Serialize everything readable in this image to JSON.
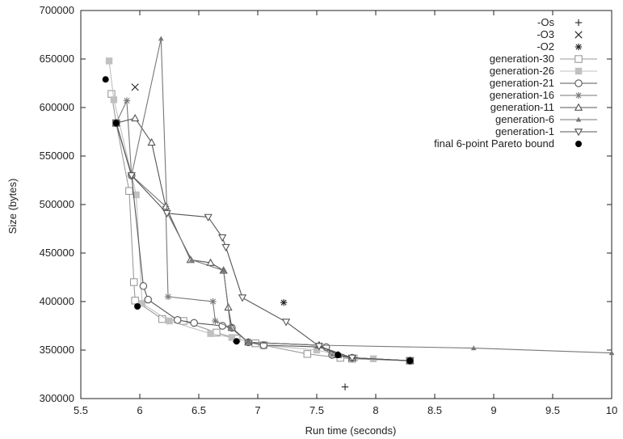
{
  "chart_data": {
    "type": "scatter",
    "xlabel": "Run time (seconds)",
    "ylabel": "Size (bytes)",
    "xlim": [
      5.5,
      10
    ],
    "ylim": [
      300000,
      700000
    ],
    "xticks": [
      "5.5",
      "6",
      "6.5",
      "7",
      "7.5",
      "8",
      "8.5",
      "9",
      "9.5",
      "10"
    ],
    "yticks": [
      "300000",
      "350000",
      "400000",
      "450000",
      "500000",
      "550000",
      "600000",
      "650000",
      "700000"
    ],
    "legend_position": "top-right",
    "series": [
      {
        "name": "-Os",
        "marker": "plus",
        "line": false,
        "color": "#222222",
        "points": [
          [
            7.74,
            312000
          ]
        ]
      },
      {
        "name": "-O3",
        "marker": "x",
        "line": false,
        "color": "#222222",
        "points": [
          [
            5.96,
            621000
          ]
        ]
      },
      {
        "name": "-O2",
        "marker": "star",
        "line": false,
        "color": "#222222",
        "points": [
          [
            7.22,
            399000
          ]
        ]
      },
      {
        "name": "generation-30",
        "marker": "square-open",
        "line": true,
        "color": "#9a9a9a",
        "points": [
          [
            5.76,
            614000
          ],
          [
            5.8,
            584000
          ],
          [
            5.91,
            514000
          ],
          [
            5.95,
            420000
          ],
          [
            5.96,
            401000
          ],
          [
            6.19,
            382000
          ],
          [
            6.37,
            380000
          ],
          [
            6.65,
            368000
          ],
          [
            6.82,
            362000
          ],
          [
            6.98,
            357000
          ],
          [
            7.05,
            355000
          ],
          [
            7.42,
            346000
          ],
          [
            7.7,
            342000
          ],
          [
            7.8,
            341000
          ],
          [
            8.29,
            339000
          ]
        ]
      },
      {
        "name": "generation-26",
        "marker": "square-filled",
        "line": true,
        "color": "#c0c0c0",
        "points": [
          [
            5.74,
            648000
          ],
          [
            5.78,
            608000
          ],
          [
            5.97,
            510000
          ],
          [
            6.02,
            398000
          ],
          [
            6.25,
            380000
          ],
          [
            6.6,
            367000
          ],
          [
            6.78,
            363000
          ],
          [
            7.05,
            355000
          ],
          [
            7.5,
            350000
          ],
          [
            7.82,
            342000
          ],
          [
            7.98,
            341000
          ],
          [
            8.29,
            339000
          ]
        ]
      },
      {
        "name": "generation-21",
        "marker": "circle-open",
        "line": true,
        "color": "#555555",
        "points": [
          [
            5.8,
            584000
          ],
          [
            5.93,
            530000
          ],
          [
            6.03,
            416000
          ],
          [
            6.07,
            402000
          ],
          [
            6.32,
            381000
          ],
          [
            6.46,
            378000
          ],
          [
            6.7,
            375000
          ],
          [
            6.78,
            373000
          ],
          [
            6.92,
            358000
          ],
          [
            7.05,
            355000
          ],
          [
            7.58,
            353000
          ],
          [
            7.63,
            345000
          ],
          [
            7.8,
            342000
          ],
          [
            8.29,
            339000
          ]
        ]
      },
      {
        "name": "generation-16",
        "marker": "star",
        "line": true,
        "color": "#777777",
        "points": [
          [
            5.8,
            584000
          ],
          [
            5.89,
            607000
          ],
          [
            5.93,
            530000
          ],
          [
            6.22,
            498000
          ],
          [
            6.24,
            405000
          ],
          [
            6.62,
            400000
          ],
          [
            6.64,
            380000
          ],
          [
            6.77,
            373000
          ],
          [
            6.92,
            358000
          ],
          [
            7.52,
            355000
          ],
          [
            7.63,
            345000
          ],
          [
            7.8,
            342000
          ],
          [
            8.29,
            339000
          ]
        ]
      },
      {
        "name": "generation-11",
        "marker": "triangle-open",
        "line": true,
        "color": "#555555",
        "points": [
          [
            5.8,
            584000
          ],
          [
            5.96,
            589000
          ],
          [
            6.1,
            564000
          ],
          [
            6.22,
            498000
          ],
          [
            6.43,
            443000
          ],
          [
            6.6,
            440000
          ],
          [
            6.71,
            432000
          ],
          [
            6.75,
            394000
          ],
          [
            6.78,
            373000
          ],
          [
            6.92,
            358000
          ],
          [
            7.52,
            355000
          ],
          [
            7.68,
            345000
          ],
          [
            7.8,
            342000
          ],
          [
            8.29,
            339000
          ]
        ]
      },
      {
        "name": "generation-6",
        "marker": "triangle-filled",
        "line": true,
        "color": "#777777",
        "points": [
          [
            5.8,
            584000
          ],
          [
            5.93,
            530000
          ],
          [
            6.18,
            671000
          ],
          [
            6.23,
            492000
          ],
          [
            6.44,
            443000
          ],
          [
            6.71,
            432000
          ],
          [
            6.77,
            373000
          ],
          [
            6.92,
            358000
          ],
          [
            7.52,
            355000
          ],
          [
            8.83,
            352000
          ],
          [
            10.0,
            347000
          ]
        ]
      },
      {
        "name": "generation-1",
        "marker": "triangle-down-open",
        "line": true,
        "color": "#555555",
        "points": [
          [
            5.8,
            584000
          ],
          [
            5.93,
            530000
          ],
          [
            6.23,
            491000
          ],
          [
            6.58,
            487000
          ],
          [
            6.7,
            466000
          ],
          [
            6.73,
            456000
          ],
          [
            6.87,
            404000
          ],
          [
            7.24,
            379000
          ],
          [
            7.52,
            354000
          ],
          [
            7.8,
            342000
          ],
          [
            8.29,
            339000
          ]
        ]
      },
      {
        "name": "final 6-point Pareto bound",
        "marker": "circle-filled",
        "line": false,
        "color": "#000000",
        "points": [
          [
            5.71,
            629000
          ],
          [
            5.8,
            584000
          ],
          [
            5.98,
            395000
          ],
          [
            6.82,
            359000
          ],
          [
            7.68,
            345000
          ],
          [
            8.29,
            339000
          ]
        ]
      }
    ]
  }
}
